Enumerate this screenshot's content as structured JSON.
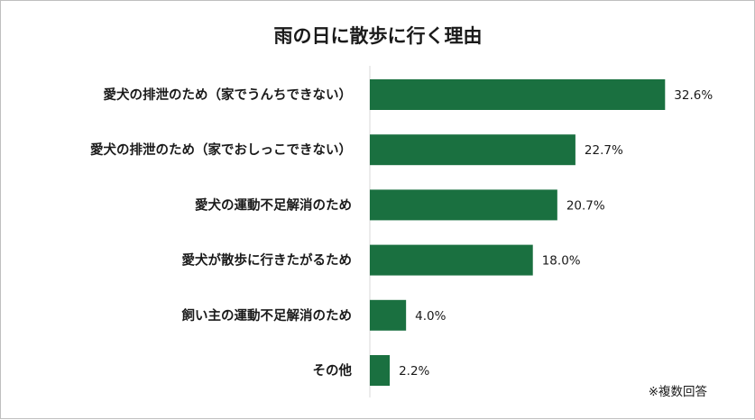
{
  "chart_data": {
    "type": "bar",
    "orientation": "horizontal",
    "title": "雨の日に散歩に行く理由",
    "categories": [
      "愛犬の排泄のため（家でうんちできない）",
      "愛犬の排泄のため（家でおしっこできない）",
      "愛犬の運動不足解消のため",
      "愛犬が散歩に行きたがるため",
      "飼い主の運動不足解消のため",
      "その他"
    ],
    "values": [
      32.6,
      22.7,
      20.7,
      18.0,
      4.0,
      2.2
    ],
    "value_labels": [
      "32.6%",
      "22.7%",
      "20.7%",
      "18.0%",
      "4.0%",
      "2.2%"
    ],
    "unit": "%",
    "xlim": [
      0,
      40
    ],
    "grid": false,
    "legend": "none",
    "bar_color": "#1a7040",
    "note": "※複数回答"
  }
}
